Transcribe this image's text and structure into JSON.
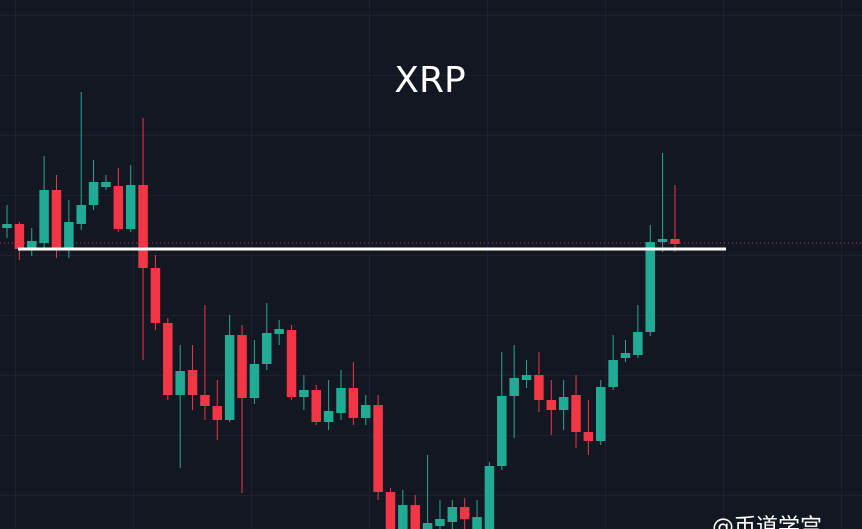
{
  "chart_data": {
    "type": "candlestick",
    "title": "XRP",
    "watermark": "@币道学宫",
    "ylim": [
      0,
      529
    ],
    "up_color": "#22ab94",
    "down_color": "#f23645",
    "open": [
      301,
      305,
      280,
      286,
      339,
      279,
      305,
      324,
      342,
      343,
      300,
      344,
      261,
      206,
      134,
      159,
      134,
      123,
      109,
      194,
      131,
      165,
      195,
      199,
      132,
      139,
      107,
      116,
      141,
      111,
      124,
      37,
      0,
      24,
      0,
      3,
      7,
      22,
      0,
      0,
      63,
      133,
      149,
      154,
      129,
      119,
      134,
      97,
      88,
      142,
      171,
      174,
      197,
      287,
      290
    ],
    "high": [
      324,
      307,
      301,
      373,
      354,
      329,
      437,
      369,
      354,
      361,
      364,
      411,
      274,
      211,
      184,
      184,
      224,
      149,
      214,
      204,
      189,
      226,
      209,
      204,
      154,
      144,
      149,
      159,
      167,
      134,
      134,
      41,
      39,
      34,
      74,
      29,
      29,
      31,
      29,
      67,
      177,
      184,
      169,
      177,
      149,
      149,
      154,
      129,
      149,
      194,
      189,
      224,
      304,
      376,
      344
    ],
    "low": [
      291,
      269,
      273,
      279,
      271,
      271,
      299,
      319,
      339,
      297,
      297,
      169,
      199,
      129,
      61,
      119,
      109,
      89,
      107,
      36,
      125,
      159,
      184,
      129,
      119,
      104,
      99,
      109,
      104,
      104,
      29,
      0,
      0,
      0,
      0,
      0,
      0,
      0,
      0,
      0,
      59,
      91,
      141,
      117,
      94,
      99,
      81,
      74,
      84,
      139,
      167,
      171,
      193,
      277,
      277
    ],
    "close": [
      305,
      280,
      288,
      339,
      279,
      307,
      324,
      347,
      347,
      300,
      344,
      261,
      206,
      134,
      158,
      134,
      123,
      109,
      194,
      131,
      165,
      196,
      200,
      132,
      139,
      107,
      118,
      141,
      111,
      124,
      37,
      0,
      24,
      0,
      6,
      10,
      22,
      10,
      12,
      63,
      133,
      151,
      154,
      129,
      119,
      132,
      97,
      88,
      142,
      169,
      176,
      197,
      287,
      290,
      285
    ],
    "level_line": {
      "value": 280,
      "color": "#ffffff"
    },
    "price_line": {
      "value": 286,
      "color": "#f23645"
    }
  }
}
